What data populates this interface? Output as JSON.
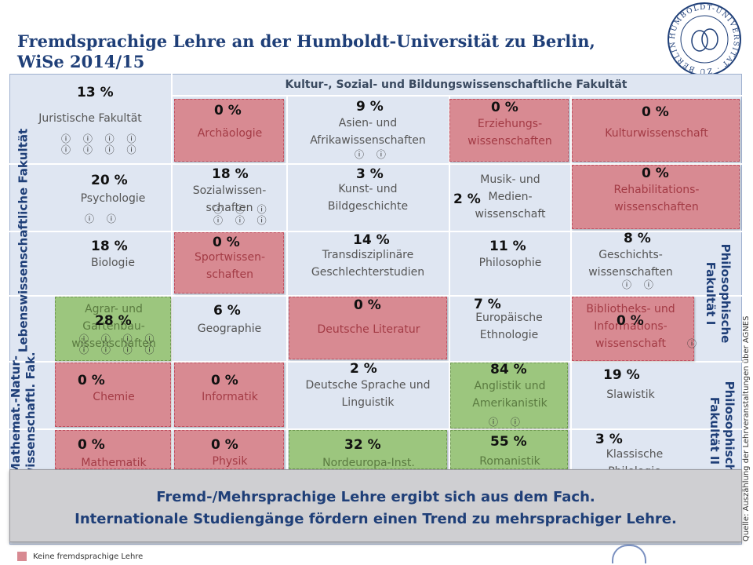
{
  "title": {
    "line1": "Fremdsprachige Lehre an der Humboldt-Universität zu Berlin,",
    "line2": "WiSe 2014/15"
  },
  "seal": {
    "text": "HUMBOLDT-UNIVERSITÄT ZU BERLIN"
  },
  "faculty_header": "Kultur-, Sozial- und Bildungswissenschaftliche Fakultät",
  "side_labels": {
    "life": "Lebenswissenschaftliche Fakultät",
    "math": "Mathemat.-Natur- wissenschaftl. Fak.",
    "phil1": "Philosophische Fakultät I",
    "phil2": "Philosophische Fakultät II"
  },
  "cells": {
    "jura": {
      "pct": "13 %",
      "name": "Juristische Fakultät",
      "icons": "ⓘ ⓘ ⓘ ⓘ|ⓘ ⓘ ⓘ ⓘ"
    },
    "archaeo": {
      "pct": "0 %",
      "name": "Archäologie"
    },
    "asien": {
      "pct": "9 %",
      "name": "Asien- und Afrikawissenschaften",
      "icons": "ⓘ ⓘ"
    },
    "erziehung": {
      "pct": "0 %",
      "name": "Erziehungs- wissenschaften"
    },
    "kultur": {
      "pct": "0 %",
      "name": "Kulturwissenschaft"
    },
    "psych": {
      "pct": "20 %",
      "name": "Psychologie",
      "icons": "ⓘ ⓘ"
    },
    "sozial": {
      "pct": "18 %",
      "name": "Sozialwissen- schaften",
      "icons": "ⓘ ⓘ ⓘ|ⓘ ⓘ ⓘ"
    },
    "kunst": {
      "pct": "3 %",
      "name": "Kunst- und Bildgeschichte"
    },
    "musik": {
      "pct": "2 %",
      "name": "Musik- und Medien- wissenschaft"
    },
    "reha": {
      "pct": "0 %",
      "name": "Rehabilitations- wissenschaften"
    },
    "bio": {
      "pct": "18 %",
      "name": "Biologie"
    },
    "sport": {
      "pct": "0 %",
      "name": "Sportwissen- schaften"
    },
    "gender": {
      "pct": "14 %",
      "name": "Transdisziplinäre Geschlechterstudien"
    },
    "philo": {
      "pct": "11 %",
      "name": "Philosophie"
    },
    "gesch": {
      "pct": "8 %",
      "name": "Geschichts- wissenschaften",
      "icons": "ⓘ ⓘ"
    },
    "agrar": {
      "pct": "28 %",
      "name": "Agrar- und Gartenbau- wissenschaften",
      "icons": "ⓘ ⓘ ⓘ ⓘ|ⓘ ⓘ ⓘ ⓘ"
    },
    "geo": {
      "pct": "6 %",
      "name": "Geographie"
    },
    "dtlit": {
      "pct": "0 %",
      "name": "Deutsche Literatur"
    },
    "ethno": {
      "pct": "7 %",
      "name": "Europäische Ethnologie"
    },
    "biblio": {
      "pct": "0 %",
      "name": "Bibliotheks- und Informations- wissenschaft",
      "icons": "ⓘ"
    },
    "chemie": {
      "pct": "0 %",
      "name": "Chemie"
    },
    "info": {
      "pct": "0 %",
      "name": "Informatik"
    },
    "dtsprache": {
      "pct": "2 %",
      "name": "Deutsche Sprache und Linguistik"
    },
    "anglistik": {
      "pct": "84 %",
      "name": "Anglistik und Amerikanistik",
      "icons": "ⓘ ⓘ"
    },
    "slawistik": {
      "pct": "19 %",
      "name": "Slawistik"
    },
    "mathe": {
      "pct": "0 %",
      "name": "Mathematik"
    },
    "physik": {
      "pct": "0 %",
      "name": "Physik"
    },
    "nordeuropa": {
      "pct": "32 %",
      "name": "Nordeuropa-Inst."
    },
    "romanistik": {
      "pct": "55 %",
      "name": "Romanistik"
    },
    "klassisch": {
      "pct": "3 %",
      "name": "Klassische Philologie"
    }
  },
  "overlay": {
    "line1": "Fremd-/Mehrsprachige Lehre ergibt sich aus dem Fach.",
    "line2": "Internationale Studiengänge fördern  einen Trend zu mehrsprachiger Lehre."
  },
  "legend": {
    "red_label": "Keine fremdsprachige Lehre"
  },
  "source": "Quelle: Auszählung der Lehrveranstaltungen über AGNES",
  "colors": {
    "red": "#d88a92",
    "green": "#9cc67e",
    "grid": "#dfe6f2",
    "title": "#1f3f78"
  }
}
